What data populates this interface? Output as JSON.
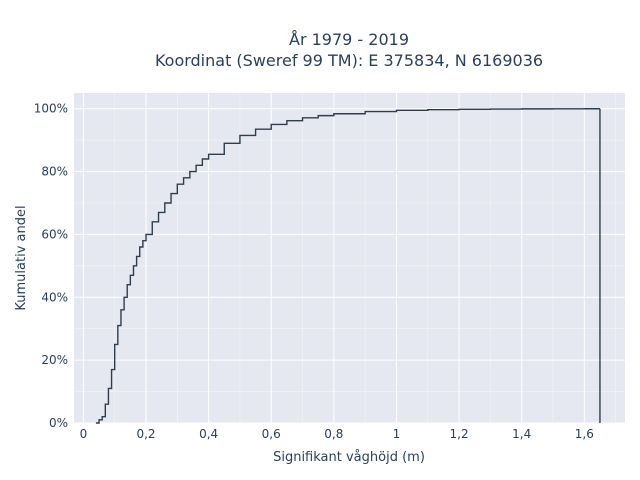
{
  "chart_data": {
    "type": "line",
    "step": true,
    "title": [
      "År 1979 - 2019",
      "Koordinat (Sweref 99 TM): E 375834, N 6169036"
    ],
    "xlabel": "Signifikant våghöjd (m)",
    "ylabel": "Kumulativ andel",
    "xlim": [
      -0.03,
      1.73
    ],
    "ylim": [
      0,
      1.05
    ],
    "x_ticks": [
      0,
      0.2,
      0.4,
      0.6,
      0.8,
      1.0,
      1.2,
      1.4,
      1.6
    ],
    "x_tick_labels": [
      "0",
      "0,2",
      "0,4",
      "0,6",
      "0,8",
      "1",
      "1,2",
      "1,4",
      "1,6"
    ],
    "y_ticks": [
      0,
      0.2,
      0.4,
      0.6,
      0.8,
      1.0
    ],
    "y_tick_labels": [
      "0%",
      "20%",
      "40%",
      "60%",
      "80%",
      "100%"
    ],
    "grid": true,
    "line_color": "#2f3e4e",
    "plot_bg": "#e5e8f0",
    "series": [
      {
        "x": [
          0.04,
          0.05,
          0.06,
          0.07,
          0.08,
          0.09,
          0.1,
          0.11,
          0.12,
          0.13,
          0.14,
          0.15,
          0.16,
          0.17,
          0.18,
          0.19,
          0.2,
          0.22,
          0.24,
          0.26,
          0.28,
          0.3,
          0.32,
          0.34,
          0.36,
          0.38,
          0.4,
          0.45,
          0.5,
          0.55,
          0.6,
          0.65,
          0.7,
          0.75,
          0.8,
          0.9,
          1.0,
          1.1,
          1.2,
          1.3,
          1.4,
          1.5,
          1.6,
          1.65
        ],
        "y": [
          0.0,
          0.01,
          0.02,
          0.06,
          0.11,
          0.17,
          0.25,
          0.31,
          0.36,
          0.4,
          0.44,
          0.47,
          0.5,
          0.53,
          0.56,
          0.58,
          0.6,
          0.64,
          0.67,
          0.7,
          0.73,
          0.76,
          0.78,
          0.8,
          0.82,
          0.84,
          0.855,
          0.89,
          0.915,
          0.935,
          0.95,
          0.962,
          0.971,
          0.978,
          0.984,
          0.991,
          0.995,
          0.997,
          0.998,
          0.999,
          0.9995,
          0.9998,
          0.9999,
          1.0
        ]
      }
    ]
  }
}
